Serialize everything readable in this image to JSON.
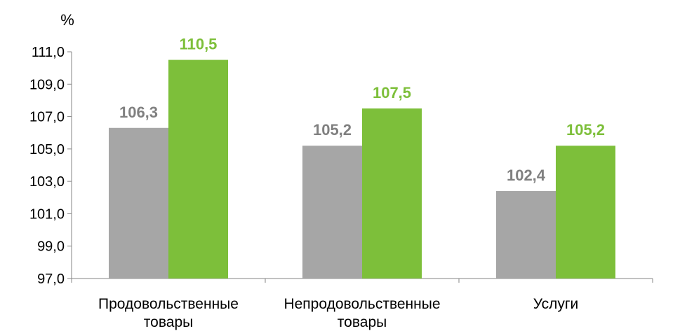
{
  "chart_data": {
    "type": "bar",
    "unit_label": "%",
    "categories": [
      [
        "Продовольственные",
        "товары"
      ],
      [
        "Непродовольственные",
        "товары"
      ],
      [
        "Услуги"
      ]
    ],
    "series": [
      {
        "color": "#a6a6a6",
        "values": [
          106.3,
          105.2,
          102.4
        ],
        "labels": [
          "106,3",
          "105,2",
          "102,4"
        ]
      },
      {
        "color": "#7dbf3a",
        "values": [
          110.5,
          107.5,
          105.2
        ],
        "labels": [
          "110,5",
          "107,5",
          "105,2"
        ]
      }
    ],
    "ylim": [
      97.0,
      111.0
    ],
    "yticks": [
      "97,0",
      "99,0",
      "101,0",
      "103,0",
      "105,0",
      "107,0",
      "109,0",
      "111,0"
    ],
    "grid": false
  }
}
